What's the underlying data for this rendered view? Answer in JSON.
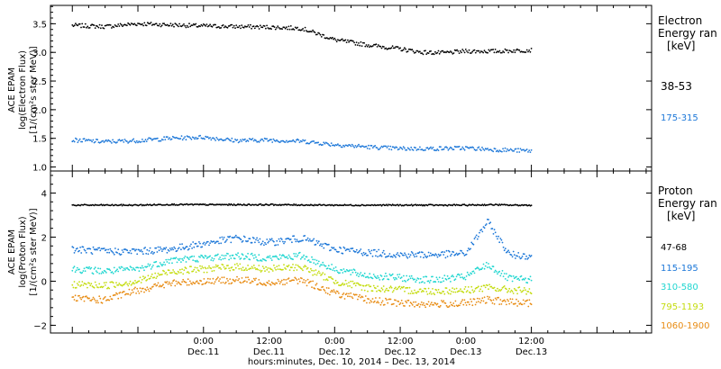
{
  "chart_data": [
    {
      "type": "scatter",
      "panel": "electron",
      "title": "",
      "ylabel_lines": [
        "ACE EPAM",
        "log(Electron Flux)",
        "[1/(cm²s ster MeV)]"
      ],
      "ylim": [
        0.93,
        3.82
      ],
      "yticks": [
        "1.0",
        "1.5",
        "2.0",
        "2.5",
        "3.0",
        "3.5"
      ],
      "ytick_values": [
        1.0,
        1.5,
        2.0,
        2.5,
        3.0,
        3.5
      ],
      "legend_title_lines": [
        "Electron",
        "Energy ran",
        "[keV]"
      ],
      "series": [
        {
          "name": "38-53",
          "color": "#000000",
          "x_hours": [
            0,
            6,
            12,
            18,
            24,
            30,
            36,
            42,
            48,
            54,
            60,
            64,
            68,
            72,
            78,
            84
          ],
          "values": [
            3.47,
            3.45,
            3.5,
            3.48,
            3.46,
            3.45,
            3.44,
            3.42,
            3.22,
            3.13,
            3.06,
            3.0,
            2.99,
            3.02,
            3.02,
            3.04
          ]
        },
        {
          "name": "175-315",
          "color": "#1c77d8",
          "x_hours": [
            0,
            6,
            12,
            18,
            24,
            30,
            36,
            42,
            48,
            54,
            60,
            66,
            72,
            78,
            84
          ],
          "values": [
            1.47,
            1.44,
            1.46,
            1.5,
            1.52,
            1.46,
            1.47,
            1.45,
            1.39,
            1.35,
            1.32,
            1.32,
            1.33,
            1.3,
            1.28
          ]
        }
      ]
    },
    {
      "type": "scatter",
      "panel": "proton",
      "title": "",
      "ylabel_lines": [
        "ACE EPAM",
        "log(Proton Flux)",
        "[1/(cm²s ster MeV)]"
      ],
      "ylim": [
        -2.35,
        5.0
      ],
      "yticks": [
        "−2",
        "0",
        "2",
        "4"
      ],
      "ytick_values": [
        -2,
        0,
        2,
        4
      ],
      "legend_title_lines": [
        "Proton",
        "Energy ran",
        "[keV]"
      ],
      "series": [
        {
          "name": "47-68",
          "color": "#000000",
          "x_hours": [
            0,
            12,
            18,
            24,
            30,
            36,
            48,
            60,
            66,
            72,
            77,
            80,
            84
          ],
          "values": [
            3.45,
            3.45,
            3.48,
            3.47,
            3.47,
            3.47,
            3.45,
            3.45,
            3.45,
            3.45,
            3.47,
            3.45,
            3.45
          ]
        },
        {
          "name": "115-195",
          "color": "#1c77d8",
          "x_hours": [
            0,
            6,
            12,
            18,
            24,
            30,
            36,
            42,
            48,
            54,
            60,
            66,
            72,
            76,
            80,
            84
          ],
          "values": [
            1.45,
            1.35,
            1.35,
            1.45,
            1.7,
            1.95,
            1.75,
            1.95,
            1.45,
            1.3,
            1.2,
            1.2,
            1.25,
            2.7,
            1.2,
            1.15
          ]
        },
        {
          "name": "310-580",
          "color": "#20d6d0",
          "x_hours": [
            0,
            6,
            12,
            18,
            24,
            30,
            36,
            42,
            48,
            54,
            60,
            66,
            72,
            76,
            80,
            84
          ],
          "values": [
            0.55,
            0.45,
            0.55,
            0.95,
            1.05,
            1.15,
            1.05,
            1.15,
            0.55,
            0.25,
            0.15,
            0.05,
            0.2,
            0.75,
            0.1,
            0.05
          ]
        },
        {
          "name": "795-1193",
          "color": "#c4dc10",
          "x_hours": [
            0,
            6,
            12,
            18,
            24,
            30,
            36,
            42,
            48,
            54,
            60,
            66,
            72,
            76,
            80,
            84
          ],
          "values": [
            -0.15,
            -0.2,
            0.0,
            0.45,
            0.55,
            0.65,
            0.55,
            0.65,
            0.0,
            -0.3,
            -0.4,
            -0.45,
            -0.4,
            -0.3,
            -0.4,
            -0.45
          ]
        },
        {
          "name": "1060-1900",
          "color": "#e88c14",
          "x_hours": [
            0,
            6,
            12,
            18,
            24,
            30,
            36,
            42,
            48,
            54,
            60,
            66,
            72,
            76,
            80,
            84
          ],
          "values": [
            -0.8,
            -0.85,
            -0.4,
            -0.1,
            0.0,
            0.05,
            -0.05,
            0.05,
            -0.55,
            -0.85,
            -1.0,
            -1.05,
            -1.0,
            -0.85,
            -0.95,
            -1.0
          ]
        }
      ]
    }
  ],
  "x_axis": {
    "range_hours_from_dec10_0000": [
      -4,
      106
    ],
    "major_ticks_hours": [
      24,
      36,
      48,
      60,
      72,
      84
    ],
    "tick_times": [
      "0:00",
      "12:00",
      "0:00",
      "12:00",
      "0:00",
      "12:00"
    ],
    "tick_dates": [
      "Dec.11",
      "Dec.11",
      "Dec.12",
      "Dec.12",
      "Dec.13",
      "Dec.13"
    ],
    "xlabel": "hours:minutes, Dec. 10, 2014 – Dec. 13, 2014"
  }
}
